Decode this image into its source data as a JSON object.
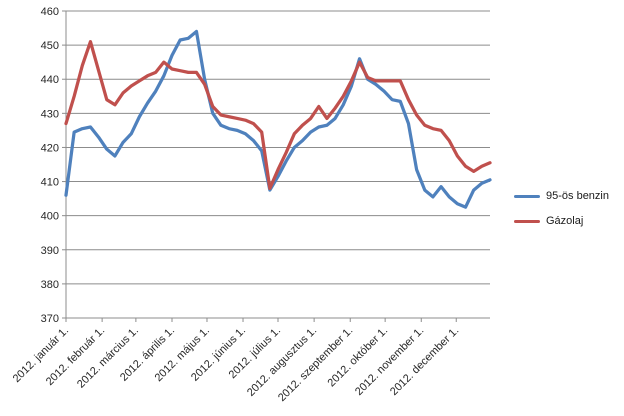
{
  "chart_data": {
    "type": "line",
    "title": "",
    "xlabel": "",
    "ylabel": "",
    "ylim": [
      370,
      460
    ],
    "y_tick_step": 10,
    "y_tick_labels": [
      "370",
      "380",
      "390",
      "400",
      "410",
      "420",
      "430",
      "440",
      "450",
      "460"
    ],
    "grid": "horizontal",
    "legend_position": "right",
    "x_unit": "weeks of 2012",
    "x_axis_end_week": 52,
    "x_tick_labels": [
      "2012. január 1.",
      "2012. február 1.",
      "2012. március 1.",
      "2012. április 1.",
      "2012. május 1.",
      "2012. június 1.",
      "2012. július 1.",
      "2012. augusztus 1.",
      "2012. szeptember 1.",
      "2012. október 1.",
      "2012. november 1.",
      "2012. december 1."
    ],
    "tick_week_positions": [
      0,
      4.43,
      8.57,
      13,
      17.29,
      21.71,
      26,
      30.43,
      34.86,
      39.14,
      43.57,
      47.86
    ],
    "gridline_color": "#8C8C8C",
    "axis_color": "#8C8C8C",
    "text_color": "#262626",
    "series": [
      {
        "name": "95-ös benzin",
        "color": "#4F81BD",
        "values": [
          406,
          424.5,
          425.5,
          426,
          423,
          419.5,
          417.5,
          421.5,
          424,
          429,
          433,
          436.5,
          441,
          447,
          451.5,
          452,
          454,
          440,
          430,
          426.5,
          425.5,
          425,
          424,
          422,
          419,
          407.5,
          411.5,
          416,
          420,
          422,
          424.5,
          426,
          426.5,
          428.5,
          432.5,
          438,
          446,
          440,
          438.5,
          436.5,
          434,
          433.5,
          427,
          413.5,
          407.5,
          405.5,
          408.5,
          405.5,
          403.5,
          402.5,
          407.5,
          409.5,
          410.5
        ]
      },
      {
        "name": "Gázolaj",
        "color": "#C0504D",
        "values": [
          427,
          435,
          444,
          451,
          442.5,
          434,
          432.5,
          436,
          438,
          439.5,
          441,
          442,
          445,
          443,
          442.5,
          442,
          442,
          438.5,
          432,
          429.5,
          429,
          428.5,
          428,
          427,
          424.5,
          408,
          413.5,
          418.5,
          424,
          426.5,
          428.5,
          432,
          428.5,
          431.5,
          435,
          439.5,
          445,
          440.5,
          439.5,
          439.5,
          439.5,
          439.5,
          434,
          429.5,
          426.5,
          425.5,
          425,
          422,
          417.5,
          414.5,
          413,
          414.5,
          415.5
        ]
      }
    ]
  }
}
